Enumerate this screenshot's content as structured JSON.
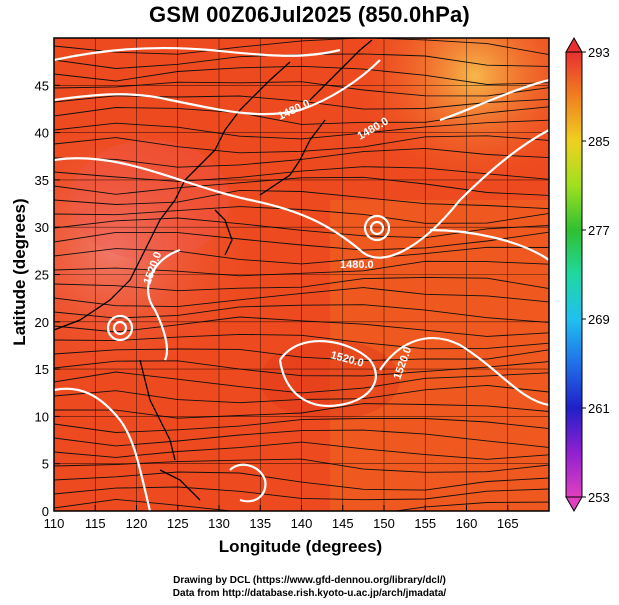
{
  "title": "GSM 00Z06Jul2025 (850.0hPa)",
  "xlabel": "Longitude (degrees)",
  "ylabel": "Latitude  (degrees)",
  "credits": [
    "Drawing by DCL (https://www.gfd-dennou.org/library/dcl/)",
    "Data from http://database.rish.kyoto-u.ac.jp/arch/jmadata/"
  ],
  "map": {
    "x_ticks": [
      "110",
      "115",
      "120",
      "125",
      "130",
      "135",
      "140",
      "145",
      "150",
      "155",
      "160",
      "165"
    ],
    "y_ticks": [
      "0",
      "5",
      "10",
      "15",
      "20",
      "25",
      "30",
      "35",
      "40",
      "45"
    ],
    "lon_range": [
      110,
      170
    ],
    "lat_range": [
      0,
      50
    ],
    "contour_labels": [
      "1480.0",
      "1480.0",
      "1480.0",
      "1520.0",
      "1520.0",
      "1520.0"
    ],
    "colorbar": {
      "ticks": [
        "293",
        "285",
        "277",
        "269",
        "261",
        "253"
      ],
      "min": 253,
      "max": 293
    },
    "field_color": "#ee4a1f"
  }
}
